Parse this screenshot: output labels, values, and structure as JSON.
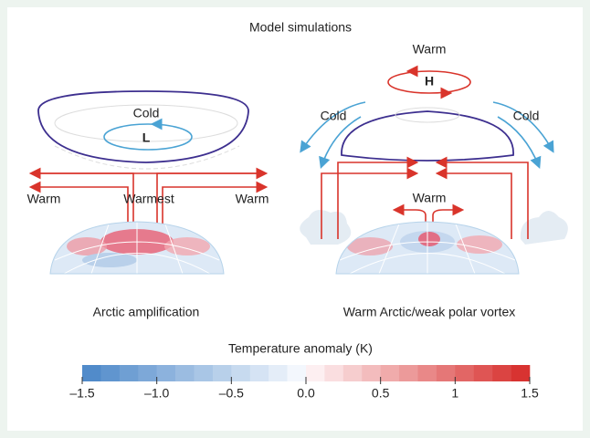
{
  "title": "Model simulations",
  "left_panel": {
    "vortex_label": "Cold",
    "pressure_label": "L",
    "warm_left": "Warm",
    "warmest": "Warmest",
    "warm_right": "Warm",
    "caption": "Arctic amplification"
  },
  "right_panel": {
    "top_label": "Warm",
    "pressure_label": "H",
    "cold_left": "Cold",
    "cold_right": "Cold",
    "arctic_label": "Warm",
    "caption": "Warm Arctic/weak polar vortex"
  },
  "colorbar": {
    "title": "Temperature anomaly (K)",
    "lim": [
      -1.5,
      1.5
    ],
    "ticks": [
      {
        "value": -1.5,
        "label": "–1.5"
      },
      {
        "value": -1.0,
        "label": "–1.0"
      },
      {
        "value": -0.5,
        "label": "–0.5"
      },
      {
        "value": 0.0,
        "label": "0.0"
      },
      0.5,
      1.0,
      1.5
    ]
  }
}
